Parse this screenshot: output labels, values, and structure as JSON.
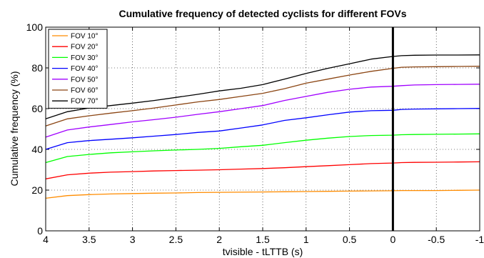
{
  "chart_data": {
    "type": "line",
    "title": "Cumulative frequency of detected cyclists for different FOVs",
    "xlabel": "tvisible - tLTTB (s)",
    "ylabel": "Cumulative frequency (%)",
    "xlim": [
      4,
      -1
    ],
    "ylim": [
      0,
      100
    ],
    "x_reversed": true,
    "grid": true,
    "legend_position": "top-left",
    "x_ticks": [
      4,
      3.5,
      3,
      2.5,
      2,
      1.5,
      1,
      0.5,
      0,
      -0.5,
      -1
    ],
    "x_tick_labels": [
      "4",
      "3.5",
      "3",
      "2.5",
      "2",
      "1.5",
      "1",
      "0.5",
      "0",
      "-0.5",
      "-1"
    ],
    "y_ticks": [
      0,
      20,
      40,
      60,
      80,
      100
    ],
    "y_tick_labels": [
      "0",
      "20",
      "40",
      "60",
      "80",
      "100"
    ],
    "vertical_line_x": 0,
    "x": [
      4,
      3.75,
      3.5,
      3.25,
      3,
      2.75,
      2.5,
      2.25,
      2,
      1.75,
      1.5,
      1.25,
      1,
      0.75,
      0.5,
      0.25,
      0,
      -0.1,
      -0.25,
      -0.5,
      -0.75,
      -1
    ],
    "series": [
      {
        "name": "FOV 10°",
        "color": "#ff8c00",
        "values": [
          16,
          17.3,
          17.8,
          18.1,
          18.3,
          18.5,
          18.6,
          18.8,
          18.9,
          19.0,
          19.1,
          19.2,
          19.3,
          19.4,
          19.5,
          19.6,
          19.7,
          19.8,
          19.8,
          19.8,
          19.9,
          20
        ]
      },
      {
        "name": "FOV 20°",
        "color": "#ff0000",
        "values": [
          25.5,
          27.5,
          28.3,
          28.8,
          29.1,
          29.4,
          29.6,
          29.8,
          30.0,
          30.3,
          30.6,
          31.0,
          31.5,
          32.0,
          32.5,
          33.0,
          33.3,
          33.5,
          33.6,
          33.7,
          33.8,
          33.9
        ]
      },
      {
        "name": "FOV 30°",
        "color": "#00ff00",
        "values": [
          33.5,
          36.5,
          37.5,
          38.3,
          38.8,
          39.3,
          39.7,
          40.0,
          40.5,
          41.3,
          42.0,
          43.3,
          44.5,
          45.5,
          46.3,
          46.8,
          47.0,
          47.2,
          47.3,
          47.4,
          47.5,
          47.6
        ]
      },
      {
        "name": "FOV 40°",
        "color": "#0000ff",
        "values": [
          40,
          43.3,
          44.3,
          45.0,
          45.7,
          46.5,
          47.3,
          48.3,
          49.0,
          50.5,
          52.0,
          54.2,
          55.5,
          57.0,
          58.3,
          59.0,
          59.2,
          59.6,
          59.8,
          59.9,
          60.0,
          60.1
        ]
      },
      {
        "name": "FOV 50°",
        "color": "#a000ff",
        "values": [
          46,
          49.5,
          51.0,
          52.2,
          53.5,
          54.6,
          55.8,
          57.2,
          58.5,
          60.0,
          61.5,
          64.0,
          66.0,
          68.0,
          69.5,
          70.6,
          71.0,
          71.3,
          71.6,
          71.8,
          71.9,
          72.0
        ]
      },
      {
        "name": "FOV 60°",
        "color": "#8b4513",
        "values": [
          51.5,
          55.0,
          56.5,
          57.8,
          59.0,
          60.3,
          61.8,
          63.3,
          64.5,
          66.0,
          67.5,
          69.8,
          72.5,
          74.5,
          76.5,
          78.3,
          79.8,
          80.3,
          80.5,
          80.6,
          80.7,
          80.8
        ]
      },
      {
        "name": "FOV 70°",
        "color": "#000000",
        "values": [
          55,
          58.5,
          60.3,
          61.5,
          62.7,
          64.0,
          65.5,
          67.0,
          68.7,
          70.0,
          71.8,
          74.5,
          77.3,
          79.8,
          82.0,
          84.3,
          85.6,
          86.0,
          86.2,
          86.3,
          86.3,
          86.4
        ]
      }
    ]
  }
}
